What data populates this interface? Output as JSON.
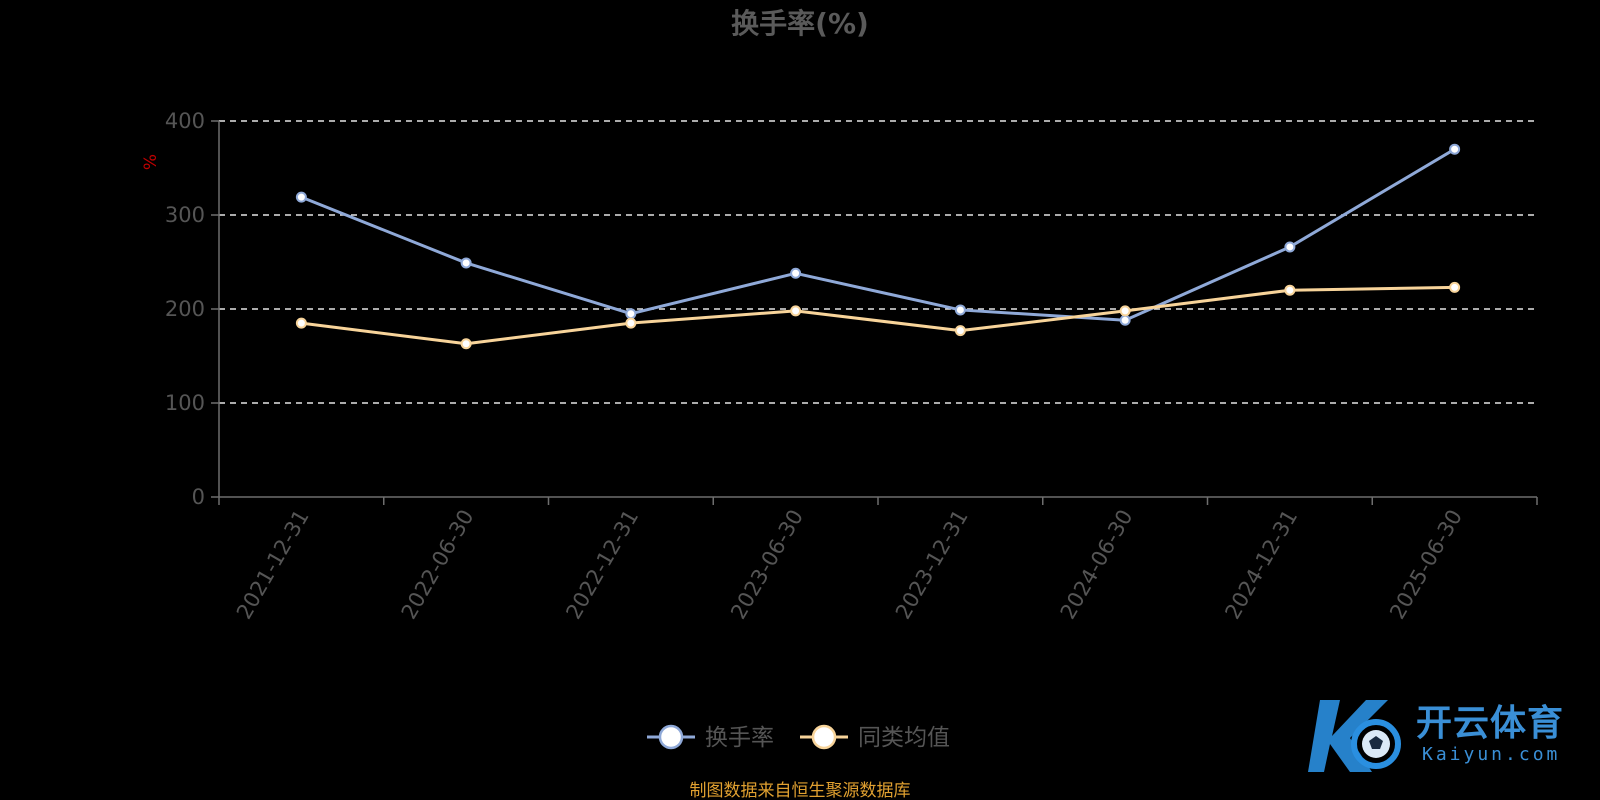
{
  "colors": {
    "background": "#000000",
    "title": "#5a5a5a",
    "tick_label": "#555555",
    "axis_line": "#6e6e6e",
    "gridline": "#e6e6e6",
    "unit_label": "#c00000",
    "legend_text": "#555555",
    "source_text": "#e0a030",
    "series_1": "#8fa9d8",
    "series_2": "#f8d49a",
    "marker_fill": "#ffffff",
    "watermark_blue": "#2a8fe0",
    "watermark_text": "#3a8fd6"
  },
  "chart_data": {
    "type": "line",
    "title": "换手率(%)",
    "ylabel": "%",
    "xlabel": "",
    "ylim": [
      0,
      400
    ],
    "yticks": [
      0,
      100,
      200,
      300,
      400
    ],
    "grid": true,
    "legend_position": "bottom-center",
    "categories": [
      "2021-12-31",
      "2022-06-30",
      "2022-12-31",
      "2023-06-30",
      "2023-12-31",
      "2024-06-30",
      "2024-12-31",
      "2025-06-30"
    ],
    "series": [
      {
        "name": "换手率",
        "color": "#8fa9d8",
        "values": [
          319,
          249,
          195,
          238,
          199,
          188,
          266,
          370
        ]
      },
      {
        "name": "同类均值",
        "color": "#f8d49a",
        "values": [
          185,
          163,
          185,
          198,
          177,
          198,
          220,
          223
        ]
      }
    ]
  },
  "source_note": "制图数据来自恒生聚源数据库",
  "watermark": {
    "brand_cn": "开云体育",
    "brand_en": "Kaiyun.com"
  }
}
